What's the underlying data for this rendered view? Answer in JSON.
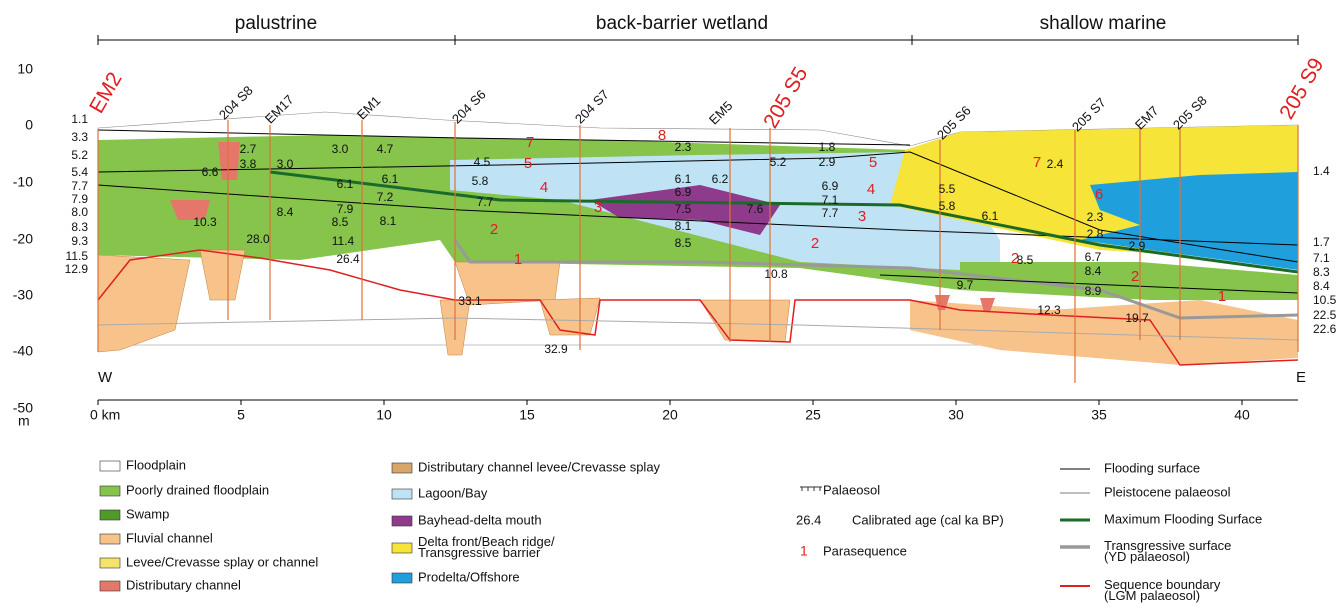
{
  "zones": [
    "palustrine",
    "back-barrier wetland",
    "shallow marine"
  ],
  "wells": [
    "EM2",
    "204 S8",
    "EM17",
    "EM1",
    "204 S6",
    "204 S7",
    "EM5",
    "205 S5",
    "205 S6",
    "205 S7",
    "EM7",
    "205 S8",
    "205 S9"
  ],
  "axis": {
    "y_ticks": [
      "10",
      "0",
      "-10",
      "-20",
      "-30",
      "-40",
      "-50"
    ],
    "y_unit": "m",
    "x_ticks": [
      "0 km",
      "5",
      "10",
      "15",
      "20",
      "25",
      "30",
      "35",
      "40"
    ]
  },
  "directions": [
    "W",
    "E"
  ],
  "ages": [
    "1.1",
    "3.3",
    "5.2",
    "5.4",
    "7.7",
    "7.9",
    "8.0",
    "8.3",
    "9.3",
    "11.5",
    "12.9",
    "1.4",
    "1.7",
    "7.1",
    "8.3",
    "8.4",
    "10.5",
    "22.5",
    "22.6",
    "2.7",
    "3.8",
    "3.0",
    "6.6",
    "3.0",
    "4.7",
    "6.1",
    "6.1",
    "7.2",
    "8.4",
    "7.9",
    "8.5",
    "8.1",
    "10.3",
    "28.0",
    "11.4",
    "26.4",
    "33.1",
    "4.5",
    "5.8",
    "7.7",
    "32.9",
    "1.8",
    "2.3",
    "2.9",
    "5.2",
    "6.1",
    "6.2",
    "6.9",
    "6.9",
    "7.1",
    "7.5",
    "7.6",
    "7.7",
    "8.1",
    "8.5",
    "10.8",
    "2.4",
    "5.5",
    "5.8",
    "6.1",
    "2.3",
    "2.8",
    "2.9",
    "6.7",
    "8.5",
    "8.4",
    "8.9",
    "9.7",
    "12.3",
    "19.7"
  ],
  "parasequences": [
    "8",
    "7",
    "5",
    "4",
    "3",
    "2",
    "1",
    "5",
    "4",
    "3",
    "2",
    "7",
    "6",
    "2",
    "2",
    "1"
  ],
  "legend": [
    {
      "lines": [
        "Floodplain"
      ]
    },
    {
      "lines": [
        "Poorly drained floodplain"
      ]
    },
    {
      "lines": [
        "Swamp"
      ]
    },
    {
      "lines": [
        "Fluvial channel"
      ]
    },
    {
      "lines": [
        "Levee/Crevasse splay or channel"
      ]
    },
    {
      "lines": [
        "Distributary channel"
      ]
    },
    {
      "lines": [
        "Distributary channel levee/Crevasse splay"
      ]
    },
    {
      "lines": [
        "Lagoon/Bay"
      ]
    },
    {
      "lines": [
        "Bayhead-delta mouth"
      ]
    },
    {
      "lines": [
        "Delta front/Beach ridge/",
        "Transgressive barrier"
      ]
    },
    {
      "lines": [
        "Prodelta/Offshore"
      ]
    },
    {
      "lines": [
        "Palaeosol"
      ]
    },
    {
      "lines": [
        "26.4",
        "Calibrated age (cal ka BP)"
      ]
    },
    {
      "lines": [
        "1",
        "Parasequence"
      ]
    },
    {
      "lines": [
        "Flooding surface"
      ]
    },
    {
      "lines": [
        "Pleistocene palaeosol"
      ]
    },
    {
      "lines": [
        "Maximum Flooding Surface"
      ]
    },
    {
      "lines": [
        "Transgressive surface",
        "(YD palaeosol)"
      ]
    },
    {
      "lines": [
        "Sequence boundary",
        "(LGM palaeosol)"
      ]
    }
  ]
}
